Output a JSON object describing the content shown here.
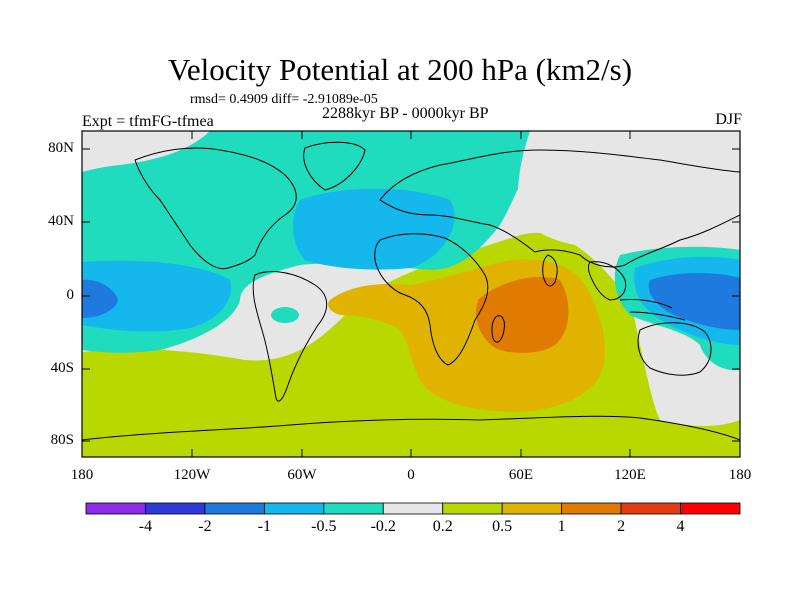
{
  "header": {
    "title": "Velocity Potential at 200 hPa (km2/s)",
    "stats": "rmsd= 0.4909 diff= -2.91089e-05",
    "experiment": "Expt = tfmFG-tfmea",
    "period": "2288kyr BP - 0000kyr BP",
    "season": "DJF"
  },
  "axes": {
    "lat_labels": [
      "80N",
      "40N",
      "0",
      "40S",
      "80S"
    ],
    "lon_labels": [
      "180",
      "120W",
      "60W",
      "0",
      "60E",
      "120E",
      "180"
    ]
  },
  "colorbar": {
    "colors": [
      "#8c2ce8",
      "#2e3ad6",
      "#1f7ae0",
      "#14b8ec",
      "#1fdcbf",
      "#e6e6e6",
      "#b8d800",
      "#e0b300",
      "#e07a00",
      "#e63c14",
      "#ff0000"
    ],
    "labels": [
      "-4",
      "-2",
      "-1",
      "-0.5",
      "-0.2",
      "0.2",
      "0.5",
      "1",
      "2",
      "4"
    ]
  },
  "map": {
    "colors": {
      "neutral": "#e6e6e6",
      "neg_small": "#1fdcbf",
      "neg_medium": "#14b8ec",
      "neg_large": "#1f7ae0",
      "pos_small": "#b8d800",
      "pos_medium": "#e0b300",
      "pos_large": "#e07a00"
    }
  }
}
